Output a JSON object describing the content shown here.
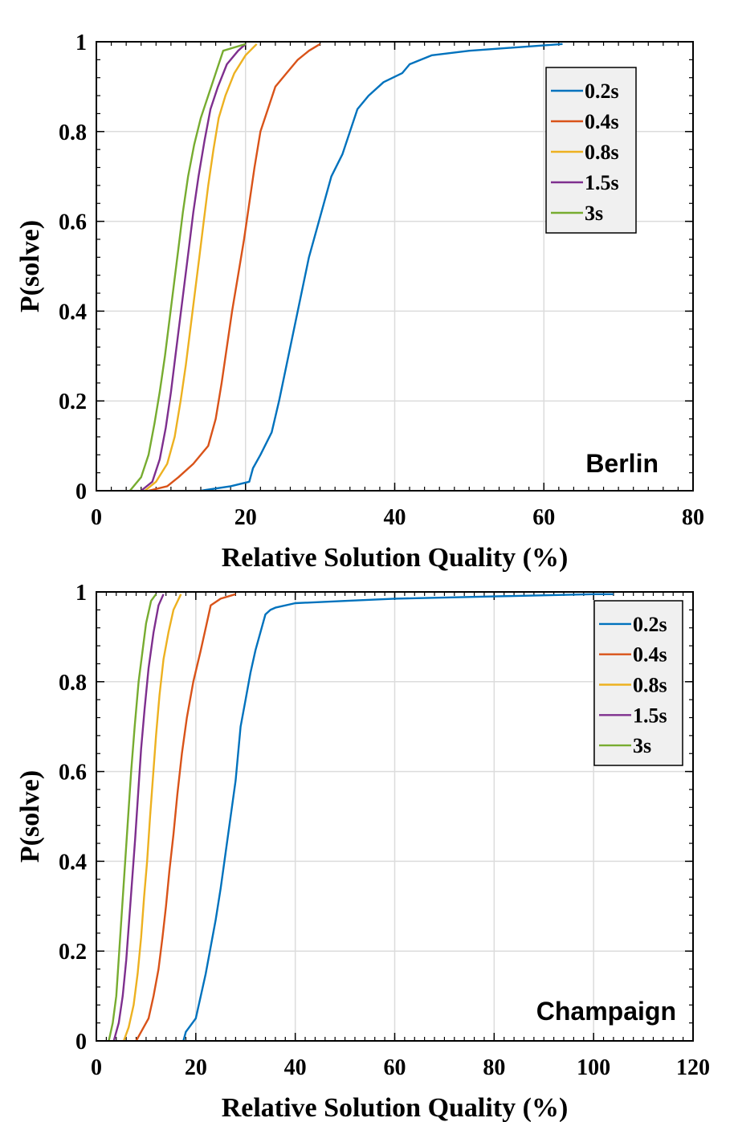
{
  "chart_data": [
    {
      "type": "line",
      "annotation": "Berlin",
      "xlabel": "Relative Solution Quality (%)",
      "ylabel": "P(solve)",
      "xlim": [
        0,
        80
      ],
      "ylim": [
        0,
        1
      ],
      "xticks": [
        "0",
        "20",
        "40",
        "60",
        "80"
      ],
      "yticks": [
        "0",
        "0.2",
        "0.4",
        "0.6",
        "0.8",
        "1"
      ],
      "grid": true,
      "legend_position": "top-right",
      "series": [
        {
          "name": "0.2s",
          "color": "#0072BD",
          "x": [
            14,
            18,
            20.5,
            21,
            22,
            23.5,
            24.5,
            25.5,
            26.5,
            27.5,
            28.5,
            29.5,
            30.5,
            31.5,
            33,
            34,
            35,
            36.5,
            38.5,
            41,
            42,
            45,
            50,
            62.5
          ],
          "y": [
            0,
            0.01,
            0.02,
            0.05,
            0.08,
            0.13,
            0.2,
            0.28,
            0.36,
            0.44,
            0.52,
            0.58,
            0.64,
            0.7,
            0.75,
            0.8,
            0.85,
            0.88,
            0.91,
            0.93,
            0.95,
            0.97,
            0.98,
            0.995
          ]
        },
        {
          "name": "0.4s",
          "color": "#D95319",
          "x": [
            7,
            9.5,
            11,
            13,
            15,
            16,
            16.8,
            17.5,
            18.2,
            19,
            19.8,
            20.5,
            21.2,
            22,
            23,
            24,
            25.5,
            27,
            28.5,
            30
          ],
          "y": [
            0,
            0.01,
            0.03,
            0.06,
            0.1,
            0.16,
            0.24,
            0.32,
            0.4,
            0.48,
            0.56,
            0.64,
            0.72,
            0.8,
            0.85,
            0.9,
            0.93,
            0.96,
            0.98,
            0.995
          ]
        },
        {
          "name": "0.8s",
          "color": "#EDB120",
          "x": [
            6.5,
            8,
            9.5,
            10.5,
            11.3,
            12,
            12.6,
            13.2,
            13.8,
            14.4,
            15,
            15.7,
            16.4,
            17.3,
            18.5,
            20,
            21.5
          ],
          "y": [
            0,
            0.02,
            0.06,
            0.12,
            0.2,
            0.28,
            0.36,
            0.44,
            0.52,
            0.6,
            0.68,
            0.76,
            0.83,
            0.88,
            0.93,
            0.97,
            0.995
          ]
        },
        {
          "name": "1.5s",
          "color": "#7E2F8E",
          "x": [
            6,
            7.5,
            8.5,
            9.3,
            10,
            10.6,
            11.2,
            11.8,
            12.4,
            13,
            13.7,
            14.5,
            15.3,
            16.3,
            17.5,
            19,
            20
          ],
          "y": [
            0,
            0.02,
            0.07,
            0.14,
            0.22,
            0.3,
            0.38,
            0.46,
            0.54,
            0.62,
            0.7,
            0.78,
            0.85,
            0.9,
            0.95,
            0.98,
            0.995
          ]
        },
        {
          "name": "3s",
          "color": "#77AC30",
          "x": [
            4.5,
            6,
            7,
            7.8,
            8.5,
            9.2,
            9.8,
            10.4,
            11,
            11.6,
            12.3,
            13.1,
            14,
            15,
            16,
            17,
            19,
            20
          ],
          "y": [
            0,
            0.03,
            0.08,
            0.15,
            0.22,
            0.3,
            0.38,
            0.46,
            0.54,
            0.62,
            0.7,
            0.77,
            0.83,
            0.88,
            0.93,
            0.98,
            0.99,
            0.995
          ]
        }
      ]
    },
    {
      "type": "line",
      "annotation": "Champaign",
      "xlabel": "Relative Solution Quality (%)",
      "ylabel": "P(solve)",
      "xlim": [
        0,
        120
      ],
      "ylim": [
        0,
        1
      ],
      "xticks": [
        "0",
        "20",
        "40",
        "60",
        "80",
        "100",
        "120"
      ],
      "yticks": [
        "0",
        "0.2",
        "0.4",
        "0.6",
        "0.8",
        "1"
      ],
      "grid": true,
      "legend_position": "top-right",
      "series": [
        {
          "name": "0.2s",
          "color": "#0072BD",
          "x": [
            17.5,
            18,
            20,
            21,
            22,
            23,
            24,
            25,
            26,
            27,
            28,
            28.5,
            29,
            30,
            31,
            32,
            33,
            34,
            35,
            36,
            40,
            50,
            60,
            80,
            100,
            104
          ],
          "y": [
            0,
            0.02,
            0.05,
            0.1,
            0.15,
            0.21,
            0.27,
            0.34,
            0.42,
            0.5,
            0.58,
            0.64,
            0.7,
            0.76,
            0.82,
            0.87,
            0.91,
            0.95,
            0.96,
            0.965,
            0.975,
            0.98,
            0.985,
            0.99,
            0.995,
            0.995
          ]
        },
        {
          "name": "0.4s",
          "color": "#D95319",
          "x": [
            8,
            9,
            10.5,
            11.5,
            12.5,
            13.3,
            14,
            14.7,
            15.5,
            16.3,
            17.2,
            18.2,
            19.5,
            21,
            22,
            23,
            25,
            28
          ],
          "y": [
            0,
            0.02,
            0.05,
            0.1,
            0.16,
            0.23,
            0.3,
            0.38,
            0.46,
            0.55,
            0.64,
            0.72,
            0.8,
            0.87,
            0.92,
            0.97,
            0.985,
            0.995
          ]
        },
        {
          "name": "0.8s",
          "color": "#EDB120",
          "x": [
            5.5,
            6.5,
            7.5,
            8.3,
            9,
            9.6,
            10.2,
            10.8,
            11.4,
            12,
            12.7,
            13.5,
            14.5,
            15.5,
            17
          ],
          "y": [
            0,
            0.03,
            0.08,
            0.15,
            0.23,
            0.32,
            0.4,
            0.5,
            0.59,
            0.68,
            0.77,
            0.85,
            0.91,
            0.96,
            0.995
          ]
        },
        {
          "name": "1.5s",
          "color": "#7E2F8E",
          "x": [
            3.5,
            4.5,
            5.3,
            6,
            6.6,
            7.2,
            7.8,
            8.4,
            9,
            9.7,
            10.5,
            11.5,
            12.5,
            13.5
          ],
          "y": [
            0,
            0.04,
            0.1,
            0.18,
            0.27,
            0.36,
            0.45,
            0.55,
            0.65,
            0.74,
            0.83,
            0.91,
            0.97,
            0.995
          ]
        },
        {
          "name": "3s",
          "color": "#77AC30",
          "x": [
            2.5,
            3.3,
            4,
            4.6,
            5.2,
            5.8,
            6.4,
            7,
            7.7,
            8.5,
            9.3,
            10,
            11,
            12
          ],
          "y": [
            0,
            0.04,
            0.1,
            0.2,
            0.3,
            0.4,
            0.5,
            0.6,
            0.7,
            0.8,
            0.87,
            0.93,
            0.98,
            0.995
          ]
        }
      ]
    }
  ]
}
